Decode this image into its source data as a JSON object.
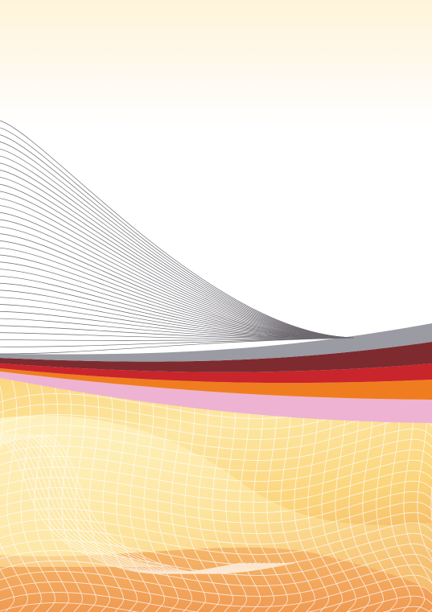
{
  "artwork": {
    "description_text": "",
    "colors": {
      "top_glow": "#fff4da",
      "background": "#ffffff",
      "line_art": "#6e6a70",
      "band_gray": "#9a9ba3",
      "band_maroon": "#7d2b2f",
      "band_red": "#c9252c",
      "band_orange": "#ef7d1f",
      "band_pink": "#eeb3d3",
      "sand_light": "#fff0b3",
      "sand_mid": "#fbd57c",
      "sand_deep": "#f3b15f",
      "sand_orange": "#f2a25b",
      "mesh_white": "#ffffff"
    }
  }
}
